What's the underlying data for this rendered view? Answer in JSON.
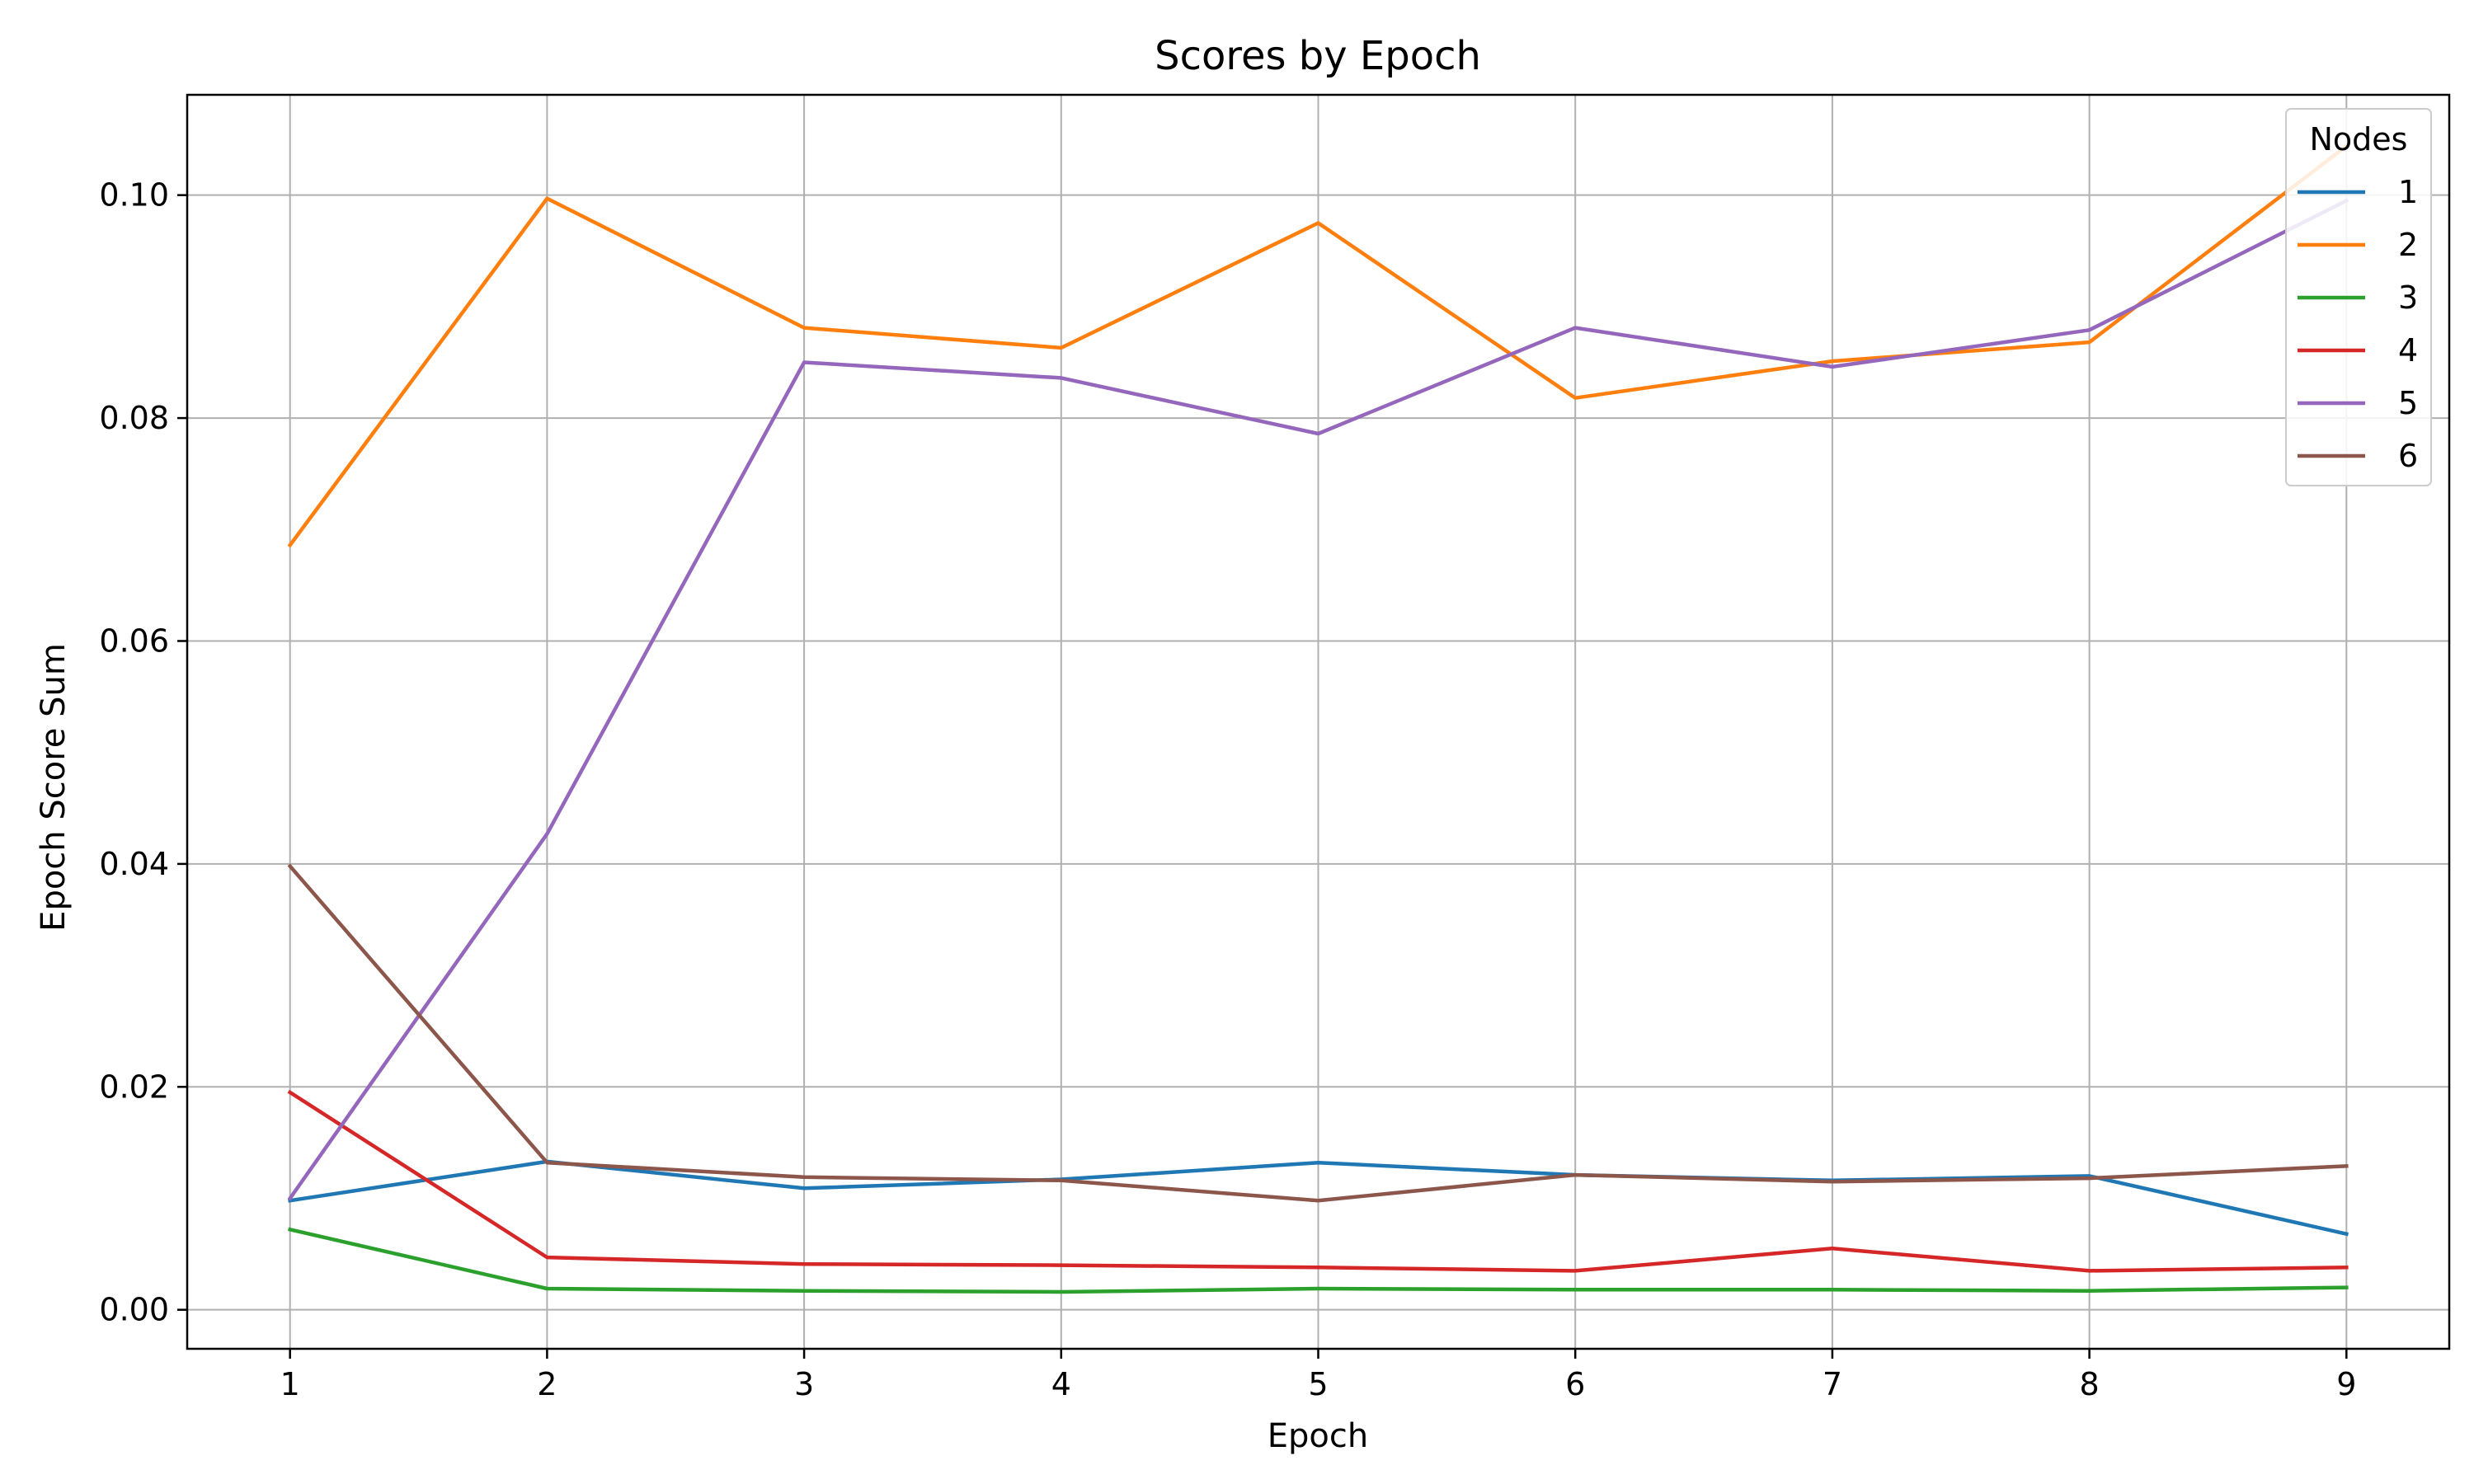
{
  "chart_data": {
    "type": "line",
    "title": "Scores by Epoch",
    "xlabel": "Epoch",
    "ylabel": "Epoch Score Sum",
    "x": [
      1,
      2,
      3,
      4,
      5,
      6,
      7,
      8,
      9
    ],
    "xlim": [
      0.6,
      9.4
    ],
    "ylim": [
      -0.0035,
      0.109
    ],
    "yticks": [
      0.0,
      0.02,
      0.04,
      0.06,
      0.08,
      0.1
    ],
    "ytick_labels": [
      "0.00",
      "0.02",
      "0.04",
      "0.06",
      "0.08",
      "0.10"
    ],
    "xticks": [
      1,
      2,
      3,
      4,
      5,
      6,
      7,
      8,
      9
    ],
    "xtick_labels": [
      "1",
      "2",
      "3",
      "4",
      "5",
      "6",
      "7",
      "8",
      "9"
    ],
    "grid": true,
    "legend": {
      "title": "Nodes",
      "placement": "top-right"
    },
    "series": [
      {
        "name": "1",
        "color": "#1f77b4",
        "values": [
          0.0098,
          0.0133,
          0.0109,
          0.0117,
          0.0132,
          0.0121,
          0.0116,
          0.012,
          0.0068
        ]
      },
      {
        "name": "2",
        "color": "#ff7f0e",
        "values": [
          0.0686,
          0.0997,
          0.0881,
          0.0863,
          0.0975,
          0.0818,
          0.0851,
          0.0868,
          0.1044
        ]
      },
      {
        "name": "3",
        "color": "#2ca02c",
        "values": [
          0.0072,
          0.0019,
          0.0017,
          0.0016,
          0.0019,
          0.0018,
          0.0018,
          0.0017,
          0.002
        ]
      },
      {
        "name": "4",
        "color": "#d62728",
        "values": [
          0.0195,
          0.0047,
          0.0041,
          0.004,
          0.0038,
          0.0035,
          0.0055,
          0.0035,
          0.0038
        ]
      },
      {
        "name": "5",
        "color": "#9467bd",
        "values": [
          0.01,
          0.0427,
          0.085,
          0.0836,
          0.0786,
          0.0881,
          0.0846,
          0.0879,
          0.0995
        ]
      },
      {
        "name": "6",
        "color": "#8c564b",
        "values": [
          0.0398,
          0.0132,
          0.0119,
          0.0116,
          0.0098,
          0.0121,
          0.0115,
          0.0118,
          0.0129
        ]
      }
    ]
  }
}
